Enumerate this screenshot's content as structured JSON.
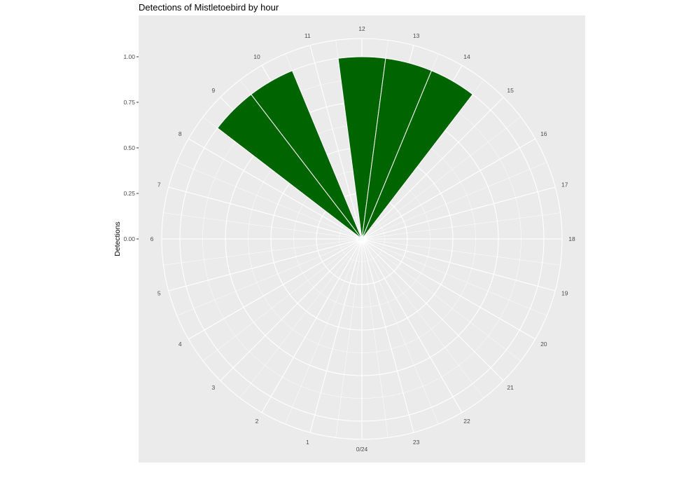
{
  "chart_data": {
    "type": "bar",
    "coord": "polar",
    "title": "Detections of Mistletoebird by hour",
    "ylabel": "Detections",
    "xlabel": "",
    "ylim": [
      0,
      1.1
    ],
    "ytick_values": [
      0,
      0.25,
      0.5,
      0.75,
      1.0
    ],
    "ytick_labels": [
      "0.00",
      "0.25",
      "0.50",
      "0.75",
      "1.00"
    ],
    "hour_labels": [
      "0/24",
      "1",
      "2",
      "3",
      "4",
      "5",
      "6",
      "7",
      "8",
      "9",
      "10",
      "11",
      "12",
      "13",
      "14",
      "15",
      "16",
      "17",
      "18",
      "19",
      "20",
      "21",
      "22",
      "23"
    ],
    "categories": [
      0,
      1,
      2,
      3,
      4,
      5,
      6,
      7,
      8,
      9,
      10,
      11,
      12,
      13,
      14,
      15,
      16,
      17,
      18,
      19,
      20,
      21,
      22,
      23
    ],
    "values": [
      0,
      0,
      0,
      0,
      0,
      0,
      0,
      0,
      0,
      1,
      1,
      0,
      1,
      1,
      1,
      0,
      0,
      0,
      0,
      0,
      0,
      0,
      0,
      0
    ],
    "bar_color": "#006400",
    "panel_color": "#EBEBEB",
    "grid": true,
    "legend": "none"
  }
}
